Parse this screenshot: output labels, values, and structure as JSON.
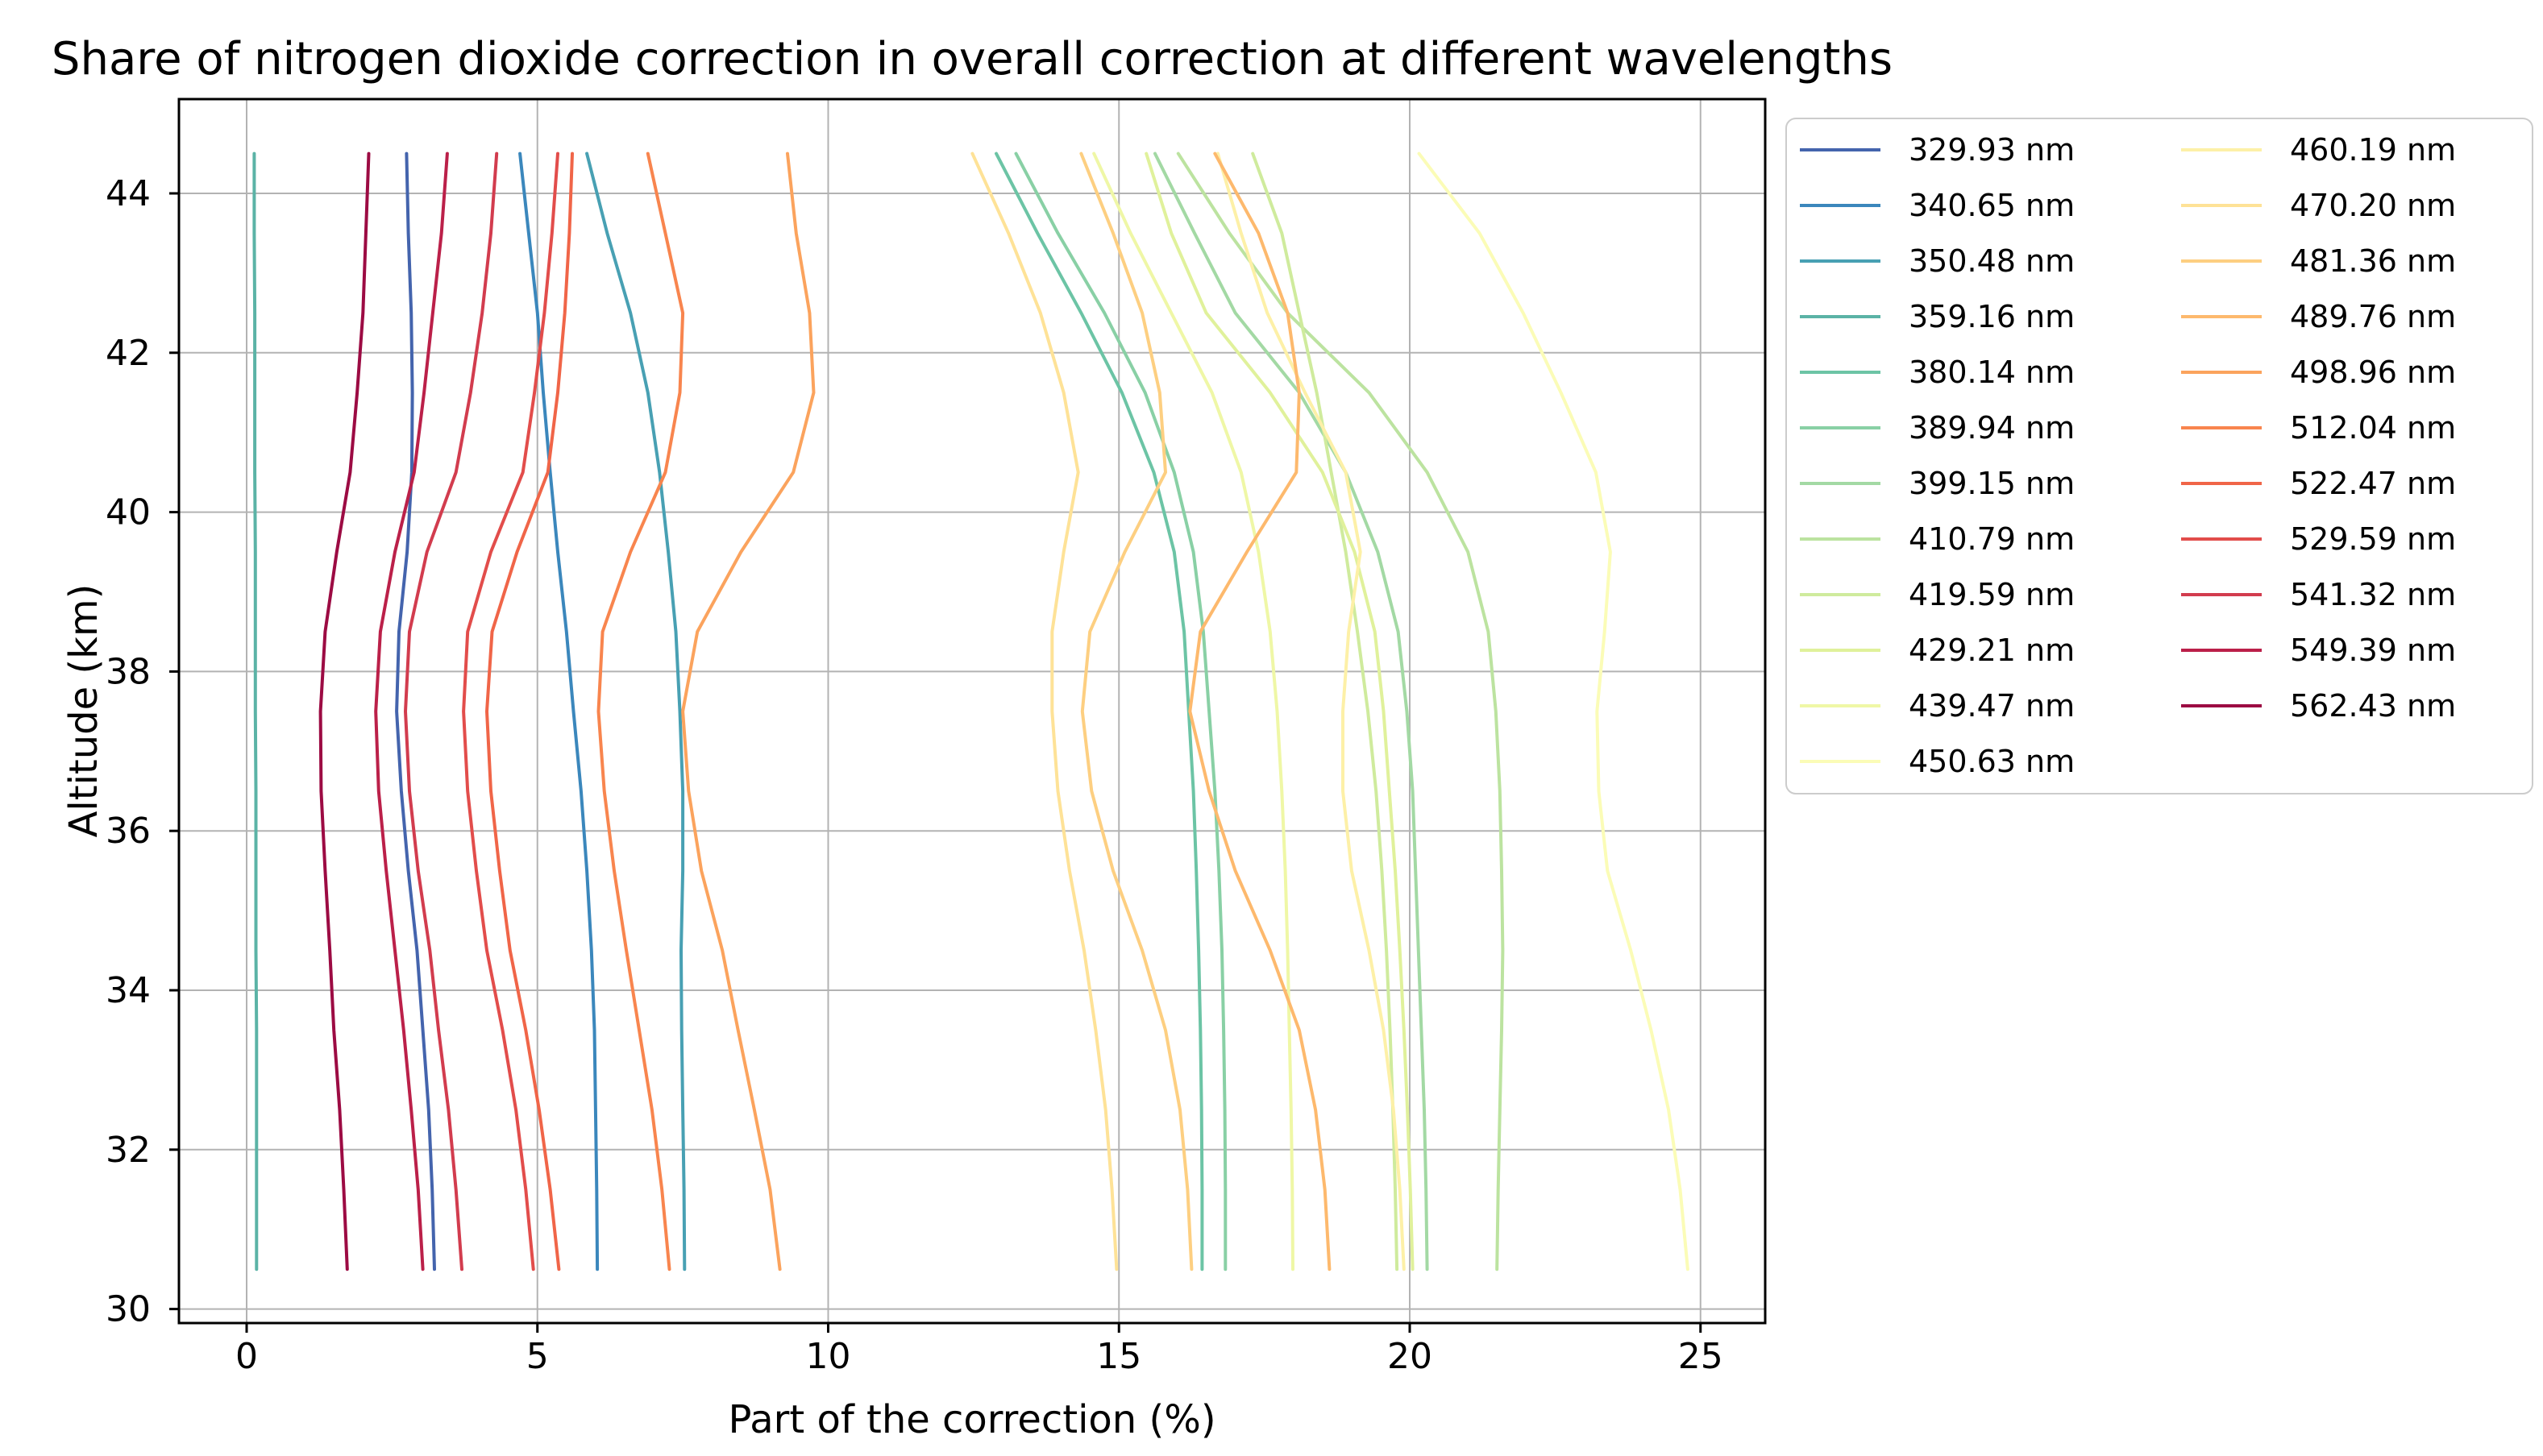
{
  "chart_data": {
    "type": "line",
    "title": "Share of nitrogen dioxide correction in overall correction at different wavelengths",
    "xlabel": "Part of the correction (%)",
    "ylabel": "Altitude (km)",
    "xticks": [
      0,
      5,
      10,
      15,
      20,
      25
    ],
    "yticks": [
      30,
      32,
      34,
      36,
      38,
      40,
      42,
      44
    ],
    "xlim": [
      -1.17,
      26.11
    ],
    "ylim": [
      29.82,
      45.18
    ],
    "grid": true,
    "legend_position": "outside-right",
    "legend_columns": 2,
    "altitudes_km": [
      44.5,
      43.5,
      42.5,
      41.5,
      40.5,
      39.5,
      38.5,
      37.5,
      36.5,
      35.5,
      34.5,
      33.5,
      32.5,
      31.5,
      30.5
    ],
    "series": [
      {
        "label": "329.93 nm",
        "color": "#4464ad",
        "values": [
          2.75,
          2.78,
          2.83,
          2.85,
          2.84,
          2.76,
          2.62,
          2.58,
          2.66,
          2.78,
          2.93,
          3.03,
          3.13,
          3.19,
          3.23
        ]
      },
      {
        "label": "340.65 nm",
        "color": "#3b87bc",
        "values": [
          4.7,
          4.85,
          5.0,
          5.1,
          5.22,
          5.35,
          5.5,
          5.62,
          5.75,
          5.85,
          5.93,
          5.98,
          6.0,
          6.02,
          6.03
        ]
      },
      {
        "label": "350.48 nm",
        "color": "#48a0b3",
        "values": [
          5.85,
          6.2,
          6.6,
          6.9,
          7.1,
          7.25,
          7.38,
          7.45,
          7.5,
          7.5,
          7.47,
          7.48,
          7.5,
          7.52,
          7.53
        ]
      },
      {
        "label": "359.16 nm",
        "color": "#5bb3a6",
        "values": [
          0.13,
          0.13,
          0.14,
          0.14,
          0.14,
          0.15,
          0.15,
          0.15,
          0.16,
          0.16,
          0.16,
          0.17,
          0.17,
          0.17,
          0.17
        ]
      },
      {
        "label": "380.14 nm",
        "color": "#6cc4a5",
        "values": [
          12.89,
          13.6,
          14.35,
          15.05,
          15.6,
          15.95,
          16.12,
          16.2,
          16.28,
          16.33,
          16.37,
          16.4,
          16.42,
          16.43,
          16.43
        ]
      },
      {
        "label": "389.94 nm",
        "color": "#89d0a5",
        "values": [
          13.23,
          13.95,
          14.75,
          15.45,
          15.95,
          16.28,
          16.45,
          16.55,
          16.65,
          16.72,
          16.77,
          16.8,
          16.82,
          16.83,
          16.83
        ]
      },
      {
        "label": "399.15 nm",
        "color": "#a3d9a4",
        "values": [
          15.62,
          16.3,
          17.0,
          18.1,
          18.9,
          19.45,
          19.8,
          19.95,
          20.05,
          20.1,
          20.15,
          20.2,
          20.25,
          20.28,
          20.3
        ]
      },
      {
        "label": "410.79 nm",
        "color": "#bce3a0",
        "values": [
          16.02,
          16.9,
          17.9,
          19.3,
          20.3,
          21.0,
          21.35,
          21.48,
          21.55,
          21.58,
          21.6,
          21.58,
          21.55,
          21.52,
          21.5
        ]
      },
      {
        "label": "419.59 nm",
        "color": "#cfeb9d",
        "values": [
          17.3,
          17.8,
          18.1,
          18.4,
          18.65,
          18.9,
          19.1,
          19.28,
          19.42,
          19.52,
          19.6,
          19.66,
          19.71,
          19.75,
          19.78
        ]
      },
      {
        "label": "429.21 nm",
        "color": "#e0f19b",
        "values": [
          15.47,
          15.9,
          16.5,
          17.6,
          18.5,
          19.05,
          19.4,
          19.55,
          19.65,
          19.75,
          19.83,
          19.9,
          19.96,
          20.01,
          20.05
        ]
      },
      {
        "label": "439.47 nm",
        "color": "#eff7a6",
        "values": [
          14.57,
          15.2,
          15.9,
          16.6,
          17.1,
          17.4,
          17.6,
          17.72,
          17.8,
          17.86,
          17.9,
          17.93,
          17.96,
          17.98,
          17.99
        ]
      },
      {
        "label": "450.63 nm",
        "color": "#fbfcb7",
        "values": [
          20.16,
          21.2,
          21.95,
          22.6,
          23.2,
          23.45,
          23.35,
          23.22,
          23.25,
          23.4,
          23.8,
          24.15,
          24.45,
          24.65,
          24.78
        ]
      },
      {
        "label": "460.19 nm",
        "color": "#fdf0a7",
        "values": [
          16.7,
          17.1,
          17.55,
          18.2,
          18.9,
          19.15,
          18.95,
          18.85,
          18.85,
          19.0,
          19.3,
          19.55,
          19.72,
          19.83,
          19.9
        ]
      },
      {
        "label": "470.20 nm",
        "color": "#fee297",
        "values": [
          12.48,
          13.1,
          13.65,
          14.05,
          14.3,
          14.05,
          13.85,
          13.85,
          13.95,
          14.15,
          14.4,
          14.6,
          14.77,
          14.88,
          14.96
        ]
      },
      {
        "label": "481.36 nm",
        "color": "#fdcf81",
        "values": [
          14.35,
          14.9,
          15.4,
          15.7,
          15.8,
          15.1,
          14.5,
          14.37,
          14.53,
          14.9,
          15.4,
          15.8,
          16.05,
          16.18,
          16.25
        ]
      },
      {
        "label": "489.76 nm",
        "color": "#fdb96d",
        "values": [
          16.65,
          17.4,
          17.9,
          18.1,
          18.05,
          17.2,
          16.4,
          16.22,
          16.55,
          17.0,
          17.6,
          18.1,
          18.38,
          18.54,
          18.62
        ]
      },
      {
        "label": "498.96 nm",
        "color": "#fba35d",
        "values": [
          9.3,
          9.45,
          9.68,
          9.75,
          9.4,
          8.5,
          7.75,
          7.5,
          7.6,
          7.82,
          8.18,
          8.45,
          8.73,
          9.0,
          9.17
        ]
      },
      {
        "label": "512.04 nm",
        "color": "#f8854e",
        "values": [
          6.9,
          7.2,
          7.5,
          7.45,
          7.2,
          6.6,
          6.12,
          6.05,
          6.15,
          6.32,
          6.53,
          6.75,
          6.97,
          7.14,
          7.27
        ]
      },
      {
        "label": "522.47 nm",
        "color": "#f06548",
        "values": [
          5.6,
          5.55,
          5.47,
          5.35,
          5.18,
          4.65,
          4.22,
          4.13,
          4.2,
          4.35,
          4.53,
          4.8,
          5.03,
          5.22,
          5.37
        ]
      },
      {
        "label": "529.59 nm",
        "color": "#e24d4b",
        "values": [
          5.35,
          5.25,
          5.12,
          4.95,
          4.75,
          4.2,
          3.8,
          3.73,
          3.8,
          3.95,
          4.13,
          4.4,
          4.63,
          4.8,
          4.93
        ]
      },
      {
        "label": "541.32 nm",
        "color": "#d23c4e",
        "values": [
          4.3,
          4.2,
          4.05,
          3.85,
          3.6,
          3.1,
          2.8,
          2.73,
          2.8,
          2.95,
          3.15,
          3.3,
          3.47,
          3.6,
          3.7
        ]
      },
      {
        "label": "549.39 nm",
        "color": "#bb2049",
        "values": [
          3.45,
          3.35,
          3.2,
          3.05,
          2.88,
          2.55,
          2.3,
          2.22,
          2.27,
          2.4,
          2.55,
          2.7,
          2.83,
          2.95,
          3.03
        ]
      },
      {
        "label": "562.43 nm",
        "color": "#9c0b43",
        "values": [
          2.1,
          2.05,
          2.0,
          1.9,
          1.78,
          1.55,
          1.35,
          1.27,
          1.28,
          1.35,
          1.43,
          1.5,
          1.6,
          1.67,
          1.73
        ]
      }
    ],
    "colors": {
      "grid": "#b3b3b3",
      "spine": "#000000",
      "legend_border": "#cccccc",
      "background": "#ffffff"
    }
  }
}
